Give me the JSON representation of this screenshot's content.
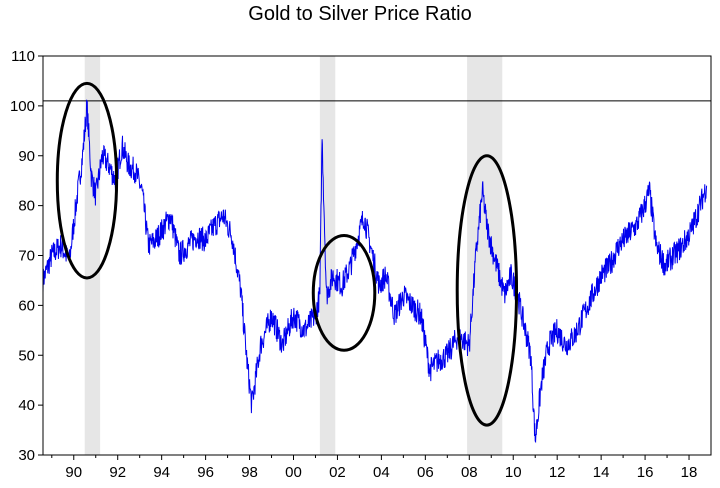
{
  "chart_data": {
    "type": "line",
    "title": "Gold to Silver Price Ratio",
    "xlabel": "",
    "ylabel": "",
    "x_ticks": [
      "90",
      "92",
      "94",
      "96",
      "98",
      "00",
      "02",
      "04",
      "06",
      "08",
      "10",
      "12",
      "14",
      "16",
      "18"
    ],
    "y_ticks": [
      30,
      40,
      50,
      60,
      70,
      80,
      90,
      100,
      110
    ],
    "xlim": [
      1988.6,
      2019.0
    ],
    "ylim": [
      30,
      110
    ],
    "grid": false,
    "reference_line": 101,
    "line_color": "#0000ee",
    "shade_color": "#e6e6e6",
    "shaded_periods": [
      {
        "start": 1990.5,
        "end": 1991.2
      },
      {
        "start": 2001.2,
        "end": 2001.9
      },
      {
        "start": 2007.9,
        "end": 2009.5
      }
    ],
    "highlight_ellipses": [
      {
        "center_x": 1990.6,
        "center_y": 85,
        "rx_years": 1.35,
        "ry_units": 19.5
      },
      {
        "center_x": 2002.3,
        "center_y": 62.5,
        "rx_years": 1.4,
        "ry_units": 11.5
      },
      {
        "center_x": 2008.8,
        "center_y": 63,
        "rx_years": 1.35,
        "ry_units": 27
      }
    ],
    "series": [
      {
        "x": [
          1988.6,
          1989.0,
          1989.4,
          1989.8,
          1990.1,
          1990.4,
          1990.6,
          1990.8,
          1991.0,
          1991.3,
          1991.6,
          1991.9,
          1992.2,
          1992.5,
          1992.8,
          1993.1,
          1993.4,
          1993.7,
          1994.0,
          1994.4,
          1994.8,
          1995.2,
          1995.6,
          1996.0,
          1996.4,
          1996.8,
          1997.2,
          1997.6,
          1997.9,
          1998.1,
          1998.5,
          1999.0,
          1999.5,
          2000.0,
          2000.5,
          2001.0,
          2001.2,
          2001.3,
          2001.5,
          2001.8,
          2002.2,
          2002.6,
          2002.9,
          2003.2,
          2003.5,
          2003.9,
          2004.2,
          2004.6,
          2005.0,
          2005.4,
          2005.8,
          2006.2,
          2006.6,
          2007.0,
          2007.5,
          2008.0,
          2008.3,
          2008.6,
          2008.8,
          2009.0,
          2009.3,
          2009.6,
          2009.9,
          2010.2,
          2010.5,
          2010.8,
          2011.0,
          2011.3,
          2011.6,
          2012.0,
          2012.4,
          2012.8,
          2013.2,
          2013.6,
          2014.0,
          2014.4,
          2014.8,
          2015.2,
          2015.6,
          2015.9,
          2016.2,
          2016.5,
          2016.9,
          2017.3,
          2017.7,
          2018.1,
          2018.5,
          2018.8
        ],
        "y": [
          65,
          70,
          72,
          69,
          80,
          90,
          100,
          86,
          82,
          90,
          88,
          85,
          92,
          88,
          87,
          83,
          72,
          73,
          75,
          78,
          70,
          72,
          74,
          73,
          76,
          78,
          74,
          63,
          48,
          40,
          52,
          58,
          52,
          58,
          55,
          58,
          62,
          94,
          62,
          66,
          64,
          68,
          73,
          78,
          72,
          64,
          66,
          58,
          62,
          60,
          58,
          47,
          49,
          50,
          54,
          52,
          70,
          83,
          76,
          72,
          67,
          62,
          66,
          62,
          56,
          50,
          33,
          45,
          52,
          55,
          52,
          54,
          58,
          62,
          66,
          68,
          72,
          74,
          76,
          79,
          83,
          72,
          68,
          70,
          72,
          75,
          80,
          84
        ]
      }
    ]
  }
}
